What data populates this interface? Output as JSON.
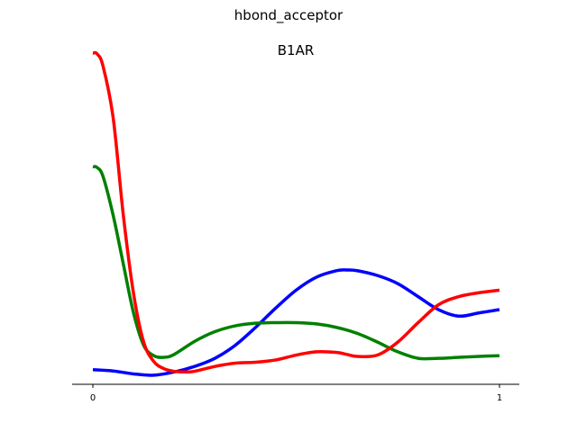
{
  "chart_data": {
    "type": "line",
    "title": "hbond_acceptor",
    "subtitle": "B1AR",
    "xlim": [
      0,
      1
    ],
    "ylim": [
      -0.02,
      1.0
    ],
    "x_ticks": [
      "0",
      "1"
    ],
    "grid": false,
    "series": [
      {
        "color": "#0000ff",
        "x": [
          0,
          0.05,
          0.1,
          0.15,
          0.2,
          0.25,
          0.3,
          0.35,
          0.4,
          0.45,
          0.5,
          0.55,
          0.6,
          0.625,
          0.65,
          0.7,
          0.75,
          0.8,
          0.85,
          0.9,
          0.95,
          1
        ],
        "y": [
          0.025,
          0.021,
          0.012,
          0.008,
          0.018,
          0.035,
          0.06,
          0.1,
          0.155,
          0.215,
          0.27,
          0.31,
          0.33,
          0.332,
          0.33,
          0.315,
          0.29,
          0.25,
          0.21,
          0.19,
          0.2,
          0.21
        ]
      },
      {
        "color": "#008000",
        "x": [
          0,
          0.01,
          0.025,
          0.05,
          0.075,
          0.1,
          0.125,
          0.15,
          0.175,
          0.2,
          0.25,
          0.3,
          0.35,
          0.4,
          0.45,
          0.5,
          0.55,
          0.6,
          0.65,
          0.7,
          0.75,
          0.8,
          0.85,
          0.9,
          0.95,
          1
        ],
        "y": [
          0.65,
          0.648,
          0.62,
          0.5,
          0.35,
          0.2,
          0.1,
          0.068,
          0.063,
          0.072,
          0.112,
          0.142,
          0.16,
          0.168,
          0.17,
          0.17,
          0.166,
          0.155,
          0.137,
          0.11,
          0.08,
          0.06,
          0.06,
          0.063,
          0.066,
          0.068
        ]
      },
      {
        "color": "#ff0000",
        "x": [
          0,
          0.01,
          0.025,
          0.05,
          0.075,
          0.1,
          0.125,
          0.15,
          0.175,
          0.2,
          0.225,
          0.25,
          0.3,
          0.35,
          0.4,
          0.45,
          0.5,
          0.55,
          0.6,
          0.625,
          0.65,
          0.7,
          0.75,
          0.8,
          0.85,
          0.9,
          0.95,
          1
        ],
        "y": [
          1.0,
          0.998,
          0.96,
          0.8,
          0.5,
          0.26,
          0.11,
          0.05,
          0.028,
          0.02,
          0.018,
          0.02,
          0.035,
          0.045,
          0.048,
          0.055,
          0.07,
          0.08,
          0.078,
          0.072,
          0.066,
          0.07,
          0.11,
          0.17,
          0.225,
          0.25,
          0.262,
          0.27
        ]
      }
    ]
  }
}
